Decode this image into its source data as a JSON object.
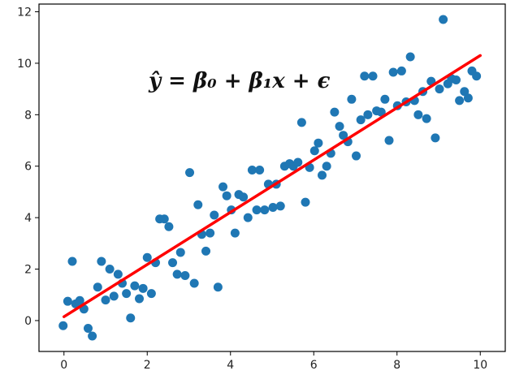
{
  "chart_data": {
    "type": "scatter",
    "title": "",
    "xlabel": "",
    "ylabel": "",
    "xlim": [
      -0.6,
      10.6
    ],
    "ylim": [
      -1.2,
      12.3
    ],
    "grid": false,
    "x_ticks": [
      0,
      2,
      4,
      6,
      8,
      10
    ],
    "x_tick_labels": [
      "0",
      "2",
      "4",
      "6",
      "8",
      "10"
    ],
    "y_ticks": [
      0,
      2,
      4,
      6,
      8,
      10,
      12
    ],
    "y_tick_labels": [
      "0",
      "2",
      "4",
      "6",
      "8",
      "10",
      "12"
    ],
    "annotation": "ŷ = β₀ + β₁x + ϵ",
    "point_color": "#1f77b4",
    "line_color": "#ff0000",
    "fit_line": {
      "x": [
        0,
        10
      ],
      "y": [
        0.15,
        10.3
      ]
    },
    "points": [
      [
        -0.02,
        -0.2
      ],
      [
        0.09,
        0.75
      ],
      [
        0.2,
        2.3
      ],
      [
        0.28,
        0.65
      ],
      [
        0.38,
        0.78
      ],
      [
        0.48,
        0.45
      ],
      [
        0.58,
        -0.3
      ],
      [
        0.68,
        -0.6
      ],
      [
        0.81,
        1.3
      ],
      [
        0.9,
        2.3
      ],
      [
        1.0,
        0.8
      ],
      [
        1.1,
        2.0
      ],
      [
        1.2,
        0.95
      ],
      [
        1.3,
        1.8
      ],
      [
        1.4,
        1.45
      ],
      [
        1.5,
        1.05
      ],
      [
        1.6,
        0.1
      ],
      [
        1.7,
        1.35
      ],
      [
        1.81,
        0.85
      ],
      [
        1.9,
        1.25
      ],
      [
        2.0,
        2.45
      ],
      [
        2.1,
        1.05
      ],
      [
        2.2,
        2.25
      ],
      [
        2.3,
        3.95
      ],
      [
        2.41,
        3.95
      ],
      [
        2.52,
        3.65
      ],
      [
        2.61,
        2.25
      ],
      [
        2.72,
        1.8
      ],
      [
        2.8,
        2.65
      ],
      [
        2.91,
        1.75
      ],
      [
        3.02,
        5.75
      ],
      [
        3.13,
        1.45
      ],
      [
        3.22,
        4.5
      ],
      [
        3.31,
        3.35
      ],
      [
        3.41,
        2.7
      ],
      [
        3.51,
        3.4
      ],
      [
        3.61,
        4.1
      ],
      [
        3.7,
        1.3
      ],
      [
        3.82,
        5.2
      ],
      [
        3.91,
        4.85
      ],
      [
        4.02,
        4.3
      ],
      [
        4.11,
        3.4
      ],
      [
        4.2,
        4.9
      ],
      [
        4.31,
        4.8
      ],
      [
        4.42,
        4.0
      ],
      [
        4.52,
        5.85
      ],
      [
        4.63,
        4.3
      ],
      [
        4.7,
        5.85
      ],
      [
        4.82,
        4.3
      ],
      [
        4.91,
        5.3
      ],
      [
        5.02,
        4.4
      ],
      [
        5.1,
        5.3
      ],
      [
        5.2,
        4.45
      ],
      [
        5.3,
        6.0
      ],
      [
        5.42,
        6.1
      ],
      [
        5.51,
        6.0
      ],
      [
        5.62,
        6.15
      ],
      [
        5.71,
        7.7
      ],
      [
        5.8,
        4.6
      ],
      [
        5.9,
        5.95
      ],
      [
        6.02,
        6.6
      ],
      [
        6.11,
        6.9
      ],
      [
        6.2,
        5.65
      ],
      [
        6.31,
        6.0
      ],
      [
        6.41,
        6.5
      ],
      [
        6.5,
        8.1
      ],
      [
        6.62,
        7.55
      ],
      [
        6.71,
        7.2
      ],
      [
        6.82,
        6.95
      ],
      [
        6.91,
        8.6
      ],
      [
        7.02,
        6.4
      ],
      [
        7.13,
        7.8
      ],
      [
        7.22,
        9.5
      ],
      [
        7.3,
        8.0
      ],
      [
        7.42,
        9.5
      ],
      [
        7.51,
        8.15
      ],
      [
        7.62,
        8.1
      ],
      [
        7.71,
        8.6
      ],
      [
        7.81,
        7.0
      ],
      [
        7.91,
        9.65
      ],
      [
        8.01,
        8.35
      ],
      [
        8.11,
        9.7
      ],
      [
        8.22,
        8.5
      ],
      [
        8.32,
        10.25
      ],
      [
        8.42,
        8.55
      ],
      [
        8.51,
        8.0
      ],
      [
        8.62,
        8.9
      ],
      [
        8.71,
        7.85
      ],
      [
        8.82,
        9.3
      ],
      [
        8.92,
        7.1
      ],
      [
        9.02,
        9.0
      ],
      [
        9.11,
        11.7
      ],
      [
        9.22,
        9.2
      ],
      [
        9.31,
        9.4
      ],
      [
        9.42,
        9.35
      ],
      [
        9.5,
        8.55
      ],
      [
        9.62,
        8.9
      ],
      [
        9.71,
        8.65
      ],
      [
        9.8,
        9.7
      ],
      [
        9.91,
        9.5
      ]
    ]
  }
}
